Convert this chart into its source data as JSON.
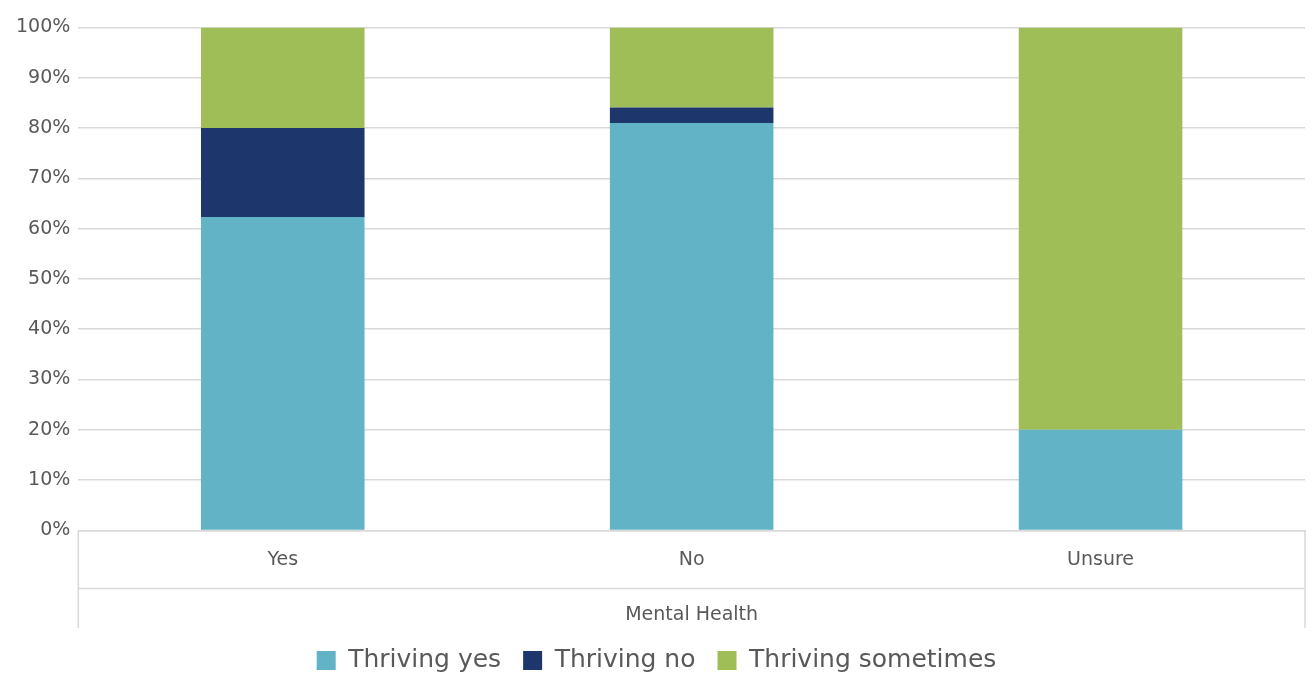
{
  "chart_data": {
    "type": "bar",
    "stacked": true,
    "xlabel": "Mental Health",
    "categories": [
      "Yes",
      "No",
      "Unsure"
    ],
    "series": [
      {
        "name": "Thriving yes",
        "color": "#62b3c6",
        "values": [
          62.3,
          81,
          20
        ]
      },
      {
        "name": "Thriving no",
        "color": "#1d366b",
        "values": [
          17.7,
          3.1,
          0
        ]
      },
      {
        "name": "Thriving sometimes",
        "color": "#9fbe57",
        "values": [
          20,
          15.9,
          80
        ]
      }
    ],
    "ylim": [
      0,
      100
    ],
    "yticks": [
      {
        "value": 0,
        "label": "0%"
      },
      {
        "value": 10,
        "label": "10%"
      },
      {
        "value": 20,
        "label": "20%"
      },
      {
        "value": 30,
        "label": "30%"
      },
      {
        "value": 40,
        "label": "40%"
      },
      {
        "value": 50,
        "label": "50%"
      },
      {
        "value": 60,
        "label": "60%"
      },
      {
        "value": 70,
        "label": "70%"
      },
      {
        "value": 80,
        "label": "80%"
      },
      {
        "value": 90,
        "label": "90%"
      },
      {
        "value": 100,
        "label": "100%"
      }
    ],
    "grid": "y",
    "legend": "bottom"
  }
}
